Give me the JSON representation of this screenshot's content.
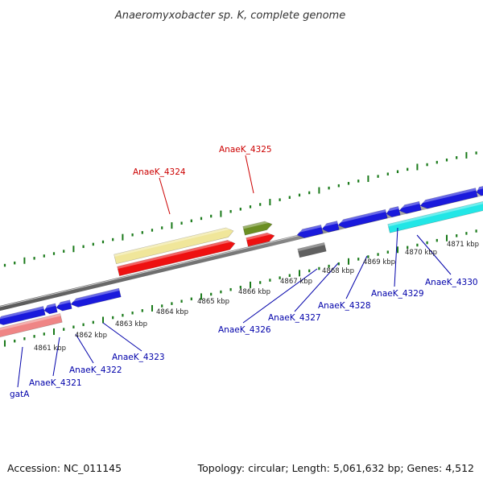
{
  "title": "Anaeromyxobacter sp. K, complete genome",
  "footer": {
    "accession": "Accession: NC_011145",
    "topology": "Topology: circular; Length: 5,061,632 bp; Genes: 4,512"
  },
  "colors": {
    "backbone": "#8a8a8a",
    "tick": "#1a7a1a",
    "label_forward": "#cc0000",
    "label_reverse": "#0000aa",
    "gene_blue": "#1a1adc",
    "gene_red": "#ee1111",
    "gene_yellow": "#f0e69a",
    "gene_olive": "#6b8e23",
    "gene_gray": "#606060",
    "gene_pink": "#ef8585",
    "gene_cyan": "#22e6e6"
  },
  "kbp_labels": [
    {
      "text": "4861 kbp"
    },
    {
      "text": "4862 kbp"
    },
    {
      "text": "4863 kbp"
    },
    {
      "text": "4864 kbp"
    },
    {
      "text": "4865 kbp"
    },
    {
      "text": "4866 kbp"
    },
    {
      "text": "4867 kbp"
    },
    {
      "text": "4868 kbp"
    },
    {
      "text": "4869 kbp"
    },
    {
      "text": "4870 kbp"
    },
    {
      "text": "4871 kbp"
    }
  ],
  "gene_labels": [
    {
      "text": "AnaeK_4324",
      "strand": "forward"
    },
    {
      "text": "AnaeK_4325",
      "strand": "forward"
    },
    {
      "text": "gatA",
      "strand": "reverse"
    },
    {
      "text": "AnaeK_4321",
      "strand": "reverse"
    },
    {
      "text": "AnaeK_4322",
      "strand": "reverse"
    },
    {
      "text": "AnaeK_4323",
      "strand": "reverse"
    },
    {
      "text": "AnaeK_4326",
      "strand": "reverse"
    },
    {
      "text": "AnaeK_4327",
      "strand": "reverse"
    },
    {
      "text": "AnaeK_4328",
      "strand": "reverse"
    },
    {
      "text": "AnaeK_4329",
      "strand": "reverse"
    },
    {
      "text": "AnaeK_4330",
      "strand": "reverse"
    }
  ],
  "genes": [
    {
      "color": "gene_yellow",
      "direction": "forward"
    },
    {
      "color": "gene_red",
      "direction": "forward"
    },
    {
      "color": "gene_olive",
      "direction": "forward"
    },
    {
      "color": "gene_red",
      "direction": "forward"
    },
    {
      "color": "gene_gray",
      "direction": "none"
    },
    {
      "color": "gene_pink",
      "direction": "none"
    },
    {
      "color": "gene_cyan",
      "direction": "none"
    },
    {
      "color": "gene_blue",
      "direction": "reverse"
    },
    {
      "color": "gene_blue",
      "direction": "reverse"
    },
    {
      "color": "gene_blue",
      "direction": "reverse"
    },
    {
      "color": "gene_blue",
      "direction": "reverse"
    },
    {
      "color": "gene_blue",
      "direction": "reverse"
    },
    {
      "color": "gene_blue",
      "direction": "reverse"
    },
    {
      "color": "gene_blue",
      "direction": "reverse"
    },
    {
      "color": "gene_blue",
      "direction": "reverse"
    },
    {
      "color": "gene_blue",
      "direction": "reverse"
    },
    {
      "color": "gene_blue",
      "direction": "reverse"
    },
    {
      "color": "gene_blue",
      "direction": "reverse"
    }
  ]
}
